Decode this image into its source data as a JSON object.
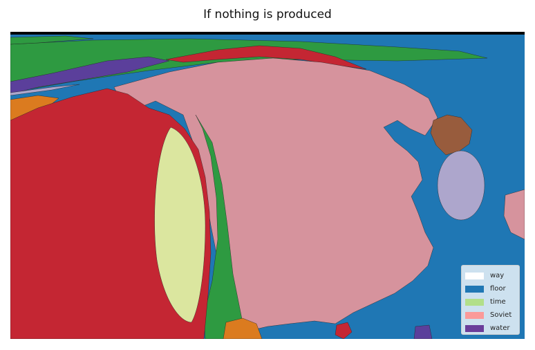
{
  "title": "If nothing is produced",
  "legend": {
    "items": [
      {
        "label": "way",
        "color": "#ffffff"
      },
      {
        "label": "floor",
        "color": "#1f77b4"
      },
      {
        "label": "time",
        "color": "#b2df8a"
      },
      {
        "label": "Soviet",
        "color": "#fb9a99"
      },
      {
        "label": "water",
        "color": "#6a3d9a"
      }
    ]
  },
  "palette": {
    "sea": "#1f77b4",
    "green": "#2e9a41",
    "red": "#c42633",
    "pink": "#d6939d",
    "purple": "#5b3f9b",
    "orange": "#db7b1f",
    "brown": "#985c3d",
    "lavender": "#ada6cc",
    "yellow": "#dbe69f",
    "border": "#000000"
  }
}
